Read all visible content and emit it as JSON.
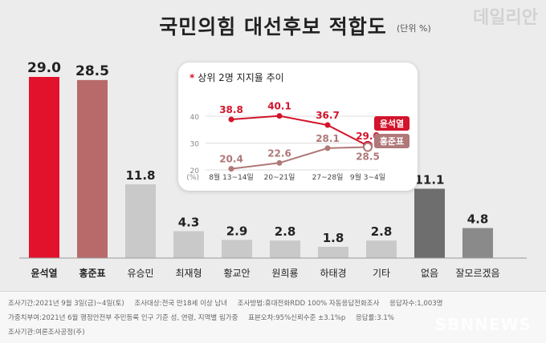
{
  "header": {
    "title": "국민의힘 대선후보 적합도",
    "unit": "(단위 %)",
    "brand": "데일리안"
  },
  "colors": {
    "highlight": "#e2122c",
    "second": "#b86a6a",
    "other": "#c9c9c9",
    "none": "#6e6e6e",
    "dontknow": "#8a8a8a",
    "line_yoon": "#d3142b",
    "line_hong": "#b07878"
  },
  "chart_data": [
    {
      "type": "bar",
      "categories": [
        "윤석열",
        "홍준표",
        "유승민",
        "최재형",
        "황교안",
        "원희룡",
        "하태경",
        "기타",
        "없음",
        "잘모르겠음"
      ],
      "values": [
        29.0,
        28.5,
        11.8,
        4.3,
        2.9,
        2.8,
        1.8,
        2.8,
        11.1,
        4.8
      ],
      "value_labels": [
        "29.0",
        "28.5",
        "11.8",
        "4.3",
        "2.9",
        "2.8",
        "1.8",
        "2.8",
        "11.1",
        "4.8"
      ],
      "ylim": [
        0,
        29.0
      ]
    },
    {
      "type": "line",
      "title": "상위 2명 지지율 추이",
      "x": [
        "8월 13~14일",
        "20~21일",
        "27~28일",
        "9월 3~4일"
      ],
      "yticks": [
        "40",
        "30",
        "20",
        "(%)"
      ],
      "ylim": [
        20,
        40
      ],
      "series": [
        {
          "name": "윤석열",
          "values": [
            38.8,
            40.1,
            36.7,
            29.0
          ],
          "labels": [
            "38.8",
            "40.1",
            "36.7",
            "29.0"
          ]
        },
        {
          "name": "홍준표",
          "values": [
            20.4,
            22.6,
            28.1,
            28.5
          ],
          "labels": [
            "20.4",
            "22.6",
            "28.1",
            "28.5"
          ]
        }
      ]
    }
  ],
  "notes": {
    "line1": [
      "조사기간:2021년 9월 3일(금)~4일(토)",
      "조사대상:전국 만18세 이상 남녀",
      "조사방법:휴대전화RDD 100% 자동응답전화조사",
      "응답자수:1,003명"
    ],
    "line2": [
      "가중치부여:2021년 6월 행정안전부 주민등록 인구 기준 성, 연령, 지역별 림가중",
      "표본오차:95%신뢰수준 ±3.1%p",
      "응답률:3.1%"
    ],
    "line3": [
      "조사기관:여론조사공정(주)"
    ]
  },
  "watermark": "SBNNEWS"
}
